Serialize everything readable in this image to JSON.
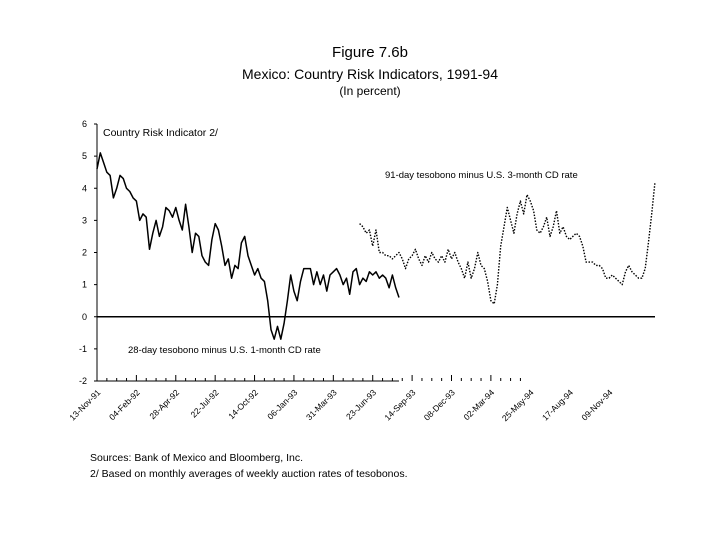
{
  "figure": {
    "title": "Figure 7.6b",
    "subtitle": "Mexico: Country Risk Indicators, 1991-94",
    "unit_note": "(In percent)"
  },
  "notes": {
    "sources": "Sources: Bank of Mexico and Bloomberg, Inc.",
    "footnote": "2/  Based on monthly averages of weekly auction rates of tesobonos."
  },
  "chart_data": {
    "type": "line",
    "title": "Country Risk Indicator 2/",
    "xlabel": "",
    "ylabel": "",
    "ylim": [
      -2,
      6
    ],
    "yticks": [
      -2,
      -1,
      0,
      1,
      2,
      3,
      4,
      5,
      6
    ],
    "x_domain": [
      0,
      170
    ],
    "x_ticklabels": [
      {
        "label": "13-Nov-91",
        "x": 0
      },
      {
        "label": "04-Feb-92",
        "x": 12
      },
      {
        "label": "28-Apr-92",
        "x": 24
      },
      {
        "label": "22-Jul-92",
        "x": 36
      },
      {
        "label": "14-Oct-92",
        "x": 48
      },
      {
        "label": "06-Jan-93",
        "x": 60
      },
      {
        "label": "31-Mar-93",
        "x": 72
      },
      {
        "label": "23-Jun-93",
        "x": 84
      },
      {
        "label": "14-Sep-93",
        "x": 96
      },
      {
        "label": "08-Dec-93",
        "x": 108
      },
      {
        "label": "02-Mar-94",
        "x": 120
      },
      {
        "label": "25-May-94",
        "x": 132
      },
      {
        "label": "17-Aug-94",
        "x": 144
      },
      {
        "label": "09-Nov-94",
        "x": 156
      }
    ],
    "zero_line": 0,
    "series": [
      {
        "name": "28-day tesobono minus U.S. 1-month CD rate",
        "style": "solid",
        "x": [
          0,
          1,
          2,
          3,
          4,
          5,
          6,
          7,
          8,
          9,
          10,
          11,
          12,
          13,
          14,
          15,
          16,
          17,
          18,
          19,
          20,
          21,
          22,
          23,
          24,
          25,
          26,
          27,
          28,
          29,
          30,
          31,
          32,
          33,
          34,
          35,
          36,
          37,
          38,
          39,
          40,
          41,
          42,
          43,
          44,
          45,
          46,
          47,
          48,
          49,
          50,
          51,
          52,
          53,
          54,
          55,
          56,
          57,
          58,
          59,
          60,
          61,
          62,
          63,
          64,
          65,
          66,
          67,
          68,
          69,
          70,
          71,
          72,
          73,
          74,
          75,
          76,
          77,
          78,
          79,
          80,
          81,
          82,
          83,
          84,
          85,
          86,
          87,
          88,
          89,
          90,
          91,
          92
        ],
        "values": [
          4.6,
          5.1,
          4.8,
          4.5,
          4.4,
          3.7,
          4.0,
          4.4,
          4.3,
          4.0,
          3.9,
          3.7,
          3.6,
          3.0,
          3.2,
          3.1,
          2.1,
          2.6,
          3.0,
          2.5,
          2.8,
          3.4,
          3.3,
          3.1,
          3.4,
          3.0,
          2.7,
          3.5,
          2.8,
          2.0,
          2.6,
          2.5,
          1.9,
          1.7,
          1.6,
          2.4,
          2.9,
          2.7,
          2.2,
          1.6,
          1.8,
          1.2,
          1.6,
          1.5,
          2.3,
          2.5,
          1.9,
          1.6,
          1.3,
          1.5,
          1.2,
          1.1,
          0.5,
          -0.4,
          -0.7,
          -0.3,
          -0.7,
          -0.2,
          0.5,
          1.3,
          0.8,
          0.5,
          1.1,
          1.5,
          1.5,
          1.5,
          1.0,
          1.4,
          1.0,
          1.3,
          0.8,
          1.3,
          1.4,
          1.5,
          1.3,
          1.0,
          1.2,
          0.7,
          1.4,
          1.5,
          1.0,
          1.2,
          1.1,
          1.4,
          1.3,
          1.4,
          1.2,
          1.3,
          1.2,
          0.9,
          1.3,
          0.9,
          0.6
        ]
      },
      {
        "name": "91-day tesobono minus U.S. 3-month CD rate",
        "style": "dotted",
        "x": [
          80,
          81,
          82,
          83,
          84,
          85,
          86,
          87,
          88,
          89,
          90,
          91,
          92,
          93,
          94,
          95,
          96,
          97,
          98,
          99,
          100,
          101,
          102,
          103,
          104,
          105,
          106,
          107,
          108,
          109,
          110,
          111,
          112,
          113,
          114,
          115,
          116,
          117,
          118,
          119,
          120,
          121,
          122,
          123,
          124,
          125,
          126,
          127,
          128,
          129,
          130,
          131,
          132,
          133,
          134,
          135,
          136,
          137,
          138,
          139,
          140,
          141,
          142,
          143,
          144,
          145,
          146,
          147,
          148,
          149,
          150,
          151,
          152,
          153,
          154,
          155,
          156,
          157,
          158,
          159,
          160,
          161,
          162,
          163,
          164,
          165,
          166,
          167,
          168,
          169,
          170
        ],
        "values": [
          2.9,
          2.8,
          2.6,
          2.7,
          2.2,
          2.7,
          2.0,
          2.0,
          1.9,
          1.9,
          1.8,
          1.9,
          2.0,
          1.8,
          1.5,
          1.8,
          1.9,
          2.1,
          1.8,
          1.6,
          1.9,
          1.7,
          2.0,
          1.8,
          1.7,
          1.9,
          1.7,
          2.1,
          1.8,
          2.0,
          1.7,
          1.5,
          1.2,
          1.7,
          1.2,
          1.5,
          2.0,
          1.6,
          1.5,
          1.1,
          0.5,
          0.4,
          1.0,
          2.2,
          2.8,
          3.4,
          3.0,
          2.6,
          3.2,
          3.6,
          3.2,
          3.8,
          3.6,
          3.3,
          2.7,
          2.6,
          2.8,
          3.1,
          2.5,
          2.8,
          3.3,
          2.6,
          2.8,
          2.5,
          2.4,
          2.5,
          2.6,
          2.5,
          2.2,
          1.7,
          1.7,
          1.7,
          1.6,
          1.6,
          1.5,
          1.2,
          1.2,
          1.3,
          1.2,
          1.1,
          1.0,
          1.4,
          1.6,
          1.4,
          1.3,
          1.2,
          1.2,
          1.5,
          2.3,
          3.2,
          4.2
        ]
      }
    ],
    "annotations": {
      "panel_label": "Country Risk Indicator 2/",
      "series_label_91": "91-day tesobono minus U.S. 3-month CD rate",
      "series_label_28": "28-day tesobono minus U.S. 1-month CD rate"
    },
    "colors": {
      "line": "#000000",
      "axis": "#000000"
    }
  }
}
